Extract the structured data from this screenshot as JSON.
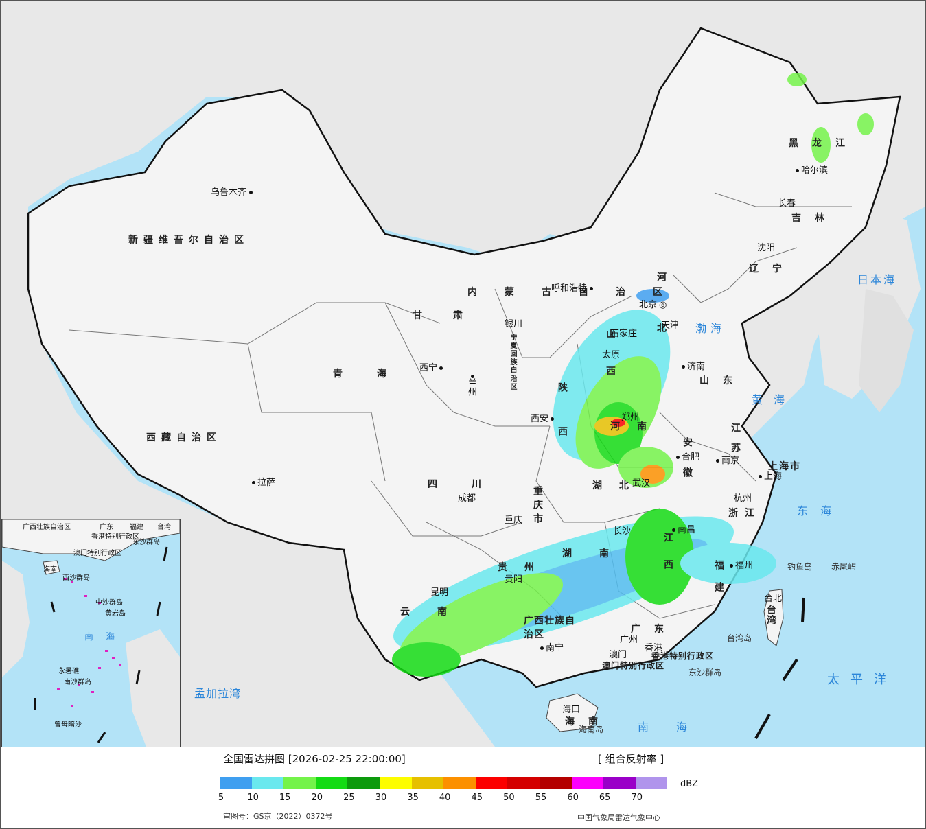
{
  "legend": {
    "title": "全国雷达拼图 [2026-02-25 22:00:00]",
    "type": "[ 组合反射率 ]",
    "unit": "dBZ",
    "ticks": [
      "5",
      "10",
      "15",
      "20",
      "25",
      "30",
      "35",
      "40",
      "45",
      "50",
      "55",
      "60",
      "65",
      "70"
    ],
    "colors": [
      "#3f9ff0",
      "#6ae8ee",
      "#74f34a",
      "#14db14",
      "#0c9a0c",
      "#fdfd00",
      "#e6c000",
      "#fc9000",
      "#fc0000",
      "#d40000",
      "#b40000",
      "#fc00fc",
      "#9a00c8",
      "#b094ec"
    ],
    "approval": "审图号：GS京（2022）0372号",
    "organization": "中国气象局雷达气象中心"
  },
  "provinces": [
    {
      "name": "新疆维吾尔自治区"
    },
    {
      "name": "西藏自治区"
    },
    {
      "name": "青海"
    },
    {
      "name": "甘肃"
    },
    {
      "name": "内蒙古自治区"
    },
    {
      "name": "黑龙江"
    },
    {
      "name": "吉林"
    },
    {
      "name": "辽宁"
    },
    {
      "name": "河北"
    },
    {
      "name": "山西"
    },
    {
      "name": "山东"
    },
    {
      "name": "陕西"
    },
    {
      "name": "河南"
    },
    {
      "name": "宁夏回族自治区"
    },
    {
      "name": "四川"
    },
    {
      "name": "重庆市"
    },
    {
      "name": "湖北"
    },
    {
      "name": "安徽"
    },
    {
      "name": "江苏"
    },
    {
      "name": "上海市"
    },
    {
      "name": "浙江"
    },
    {
      "name": "湖南"
    },
    {
      "name": "江西"
    },
    {
      "name": "福建"
    },
    {
      "name": "贵州"
    },
    {
      "name": "云南"
    },
    {
      "name": "广西壮族自治区"
    },
    {
      "name": "广东"
    },
    {
      "name": "海南"
    },
    {
      "name": "台湾"
    },
    {
      "name": "香港特别行政区"
    },
    {
      "name": "澳门特别行政区"
    }
  ],
  "cities": [
    "乌鲁木齐",
    "拉萨",
    "西宁",
    "兰州",
    "银川",
    "呼和浩特",
    "北京",
    "天津",
    "石家庄",
    "太原",
    "济南",
    "西安",
    "郑州",
    "合肥",
    "南京",
    "上海",
    "杭州",
    "武汉",
    "长沙",
    "南昌",
    "福州",
    "台北",
    "成都",
    "重庆",
    "贵阳",
    "昆明",
    "南宁",
    "广州",
    "澳门",
    "香港",
    "海口",
    "哈尔滨",
    "长春",
    "沈阳"
  ],
  "seas": [
    "渤海",
    "黄海",
    "东海",
    "南海",
    "太平洋",
    "日本海",
    "孟加拉湾"
  ],
  "islands": [
    "钓鱼岛",
    "赤尾屿",
    "台湾岛",
    "东沙群岛",
    "海南岛"
  ],
  "inset": {
    "labels": [
      "广西壮族自治区",
      "广东",
      "福建",
      "台湾",
      "香港特别行政区",
      "澳门特别行政区",
      "东沙群岛",
      "海南",
      "西沙群岛",
      "中沙群岛",
      "黄岩岛",
      "南海",
      "南沙群岛",
      "曾母暗沙",
      "永暑礁"
    ]
  }
}
